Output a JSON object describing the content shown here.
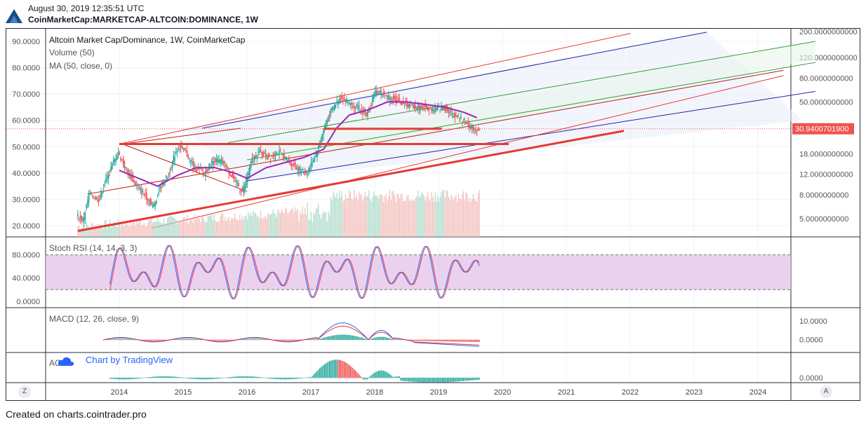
{
  "header": {
    "date": "August 30, 2019 12:35:51 UTC",
    "symbol": "CoinMarketCap:MARKETCAP-ALTCOIN:DOMINANCE, 1W"
  },
  "footer": "Created on charts.cointrader.pro",
  "colors": {
    "bull": "#26a69a",
    "bear": "#ef5350",
    "ma": "#9c27b0",
    "pitch_red": "#e53935",
    "pitch_blue": "#2222aa",
    "pitch_green": "#2e9e2e",
    "rsi_band": "#e1bee7",
    "macd_line": "#2962ff",
    "signal_line": "#e53935",
    "price_badge": "#ef5350"
  },
  "tv_badge": "Chart by TradingView",
  "buttons": {
    "left": "Z",
    "right": "A"
  },
  "chart_data": [
    {
      "type": "candlestick",
      "title": "Altcoin Market Cap/Dominance, 1W, CoinMarketCap",
      "indicators": [
        "Volume (50)",
        "MA (50, close, 0)"
      ],
      "ylim": [
        15,
        93
      ],
      "yticks": [
        "90.0000",
        "80.0000",
        "70.0000",
        "60.0000",
        "50.0000",
        "40.0000",
        "30.0000",
        "20.0000"
      ],
      "ytick_values": [
        90,
        80,
        70,
        60,
        50,
        40,
        30,
        20
      ],
      "right_axis": {
        "scale": "log",
        "ticks": [
          "200.0000000000",
          "120.0000000000",
          "80.0000000000",
          "50.0000000000",
          "18.0000000000",
          "12.0000000000",
          "8.0000000000",
          "5.0000000000"
        ],
        "tick_values": [
          200,
          120,
          80,
          50,
          18,
          12,
          8,
          5
        ],
        "current_price_label": "30.9400701900",
        "current_value": 56.8
      },
      "xticks": [
        "2014",
        "2015",
        "2016",
        "2017",
        "2018",
        "2019",
        "2020",
        "2021",
        "2022",
        "2023",
        "2024"
      ],
      "xtick_years": [
        2014,
        2015,
        2016,
        2017,
        2018,
        2019,
        2020,
        2021,
        2022,
        2023,
        2024
      ],
      "price_keypoints": [
        [
          2013.35,
          24
        ],
        [
          2013.45,
          22
        ],
        [
          2013.55,
          32
        ],
        [
          2013.7,
          30
        ],
        [
          2013.85,
          40
        ],
        [
          2014.0,
          48
        ],
        [
          2014.15,
          40
        ],
        [
          2014.3,
          35
        ],
        [
          2014.45,
          31
        ],
        [
          2014.55,
          27
        ],
        [
          2014.65,
          34
        ],
        [
          2014.8,
          40
        ],
        [
          2014.9,
          48
        ],
        [
          2014.95,
          50
        ],
        [
          2015.05,
          48
        ],
        [
          2015.2,
          42
        ],
        [
          2015.35,
          40
        ],
        [
          2015.5,
          45
        ],
        [
          2015.65,
          44
        ],
        [
          2015.8,
          38
        ],
        [
          2015.95,
          33
        ],
        [
          2016.1,
          45
        ],
        [
          2016.2,
          48
        ],
        [
          2016.35,
          46
        ],
        [
          2016.5,
          48
        ],
        [
          2016.65,
          45
        ],
        [
          2016.8,
          42
        ],
        [
          2016.95,
          40
        ],
        [
          2017.1,
          47
        ],
        [
          2017.2,
          55
        ],
        [
          2017.3,
          62
        ],
        [
          2017.4,
          66
        ],
        [
          2017.5,
          69
        ],
        [
          2017.6,
          67
        ],
        [
          2017.75,
          65
        ],
        [
          2017.9,
          62
        ],
        [
          2018.0,
          70
        ],
        [
          2018.1,
          71
        ],
        [
          2018.2,
          69
        ],
        [
          2018.35,
          68
        ],
        [
          2018.5,
          66
        ],
        [
          2018.65,
          65
        ],
        [
          2018.8,
          65
        ],
        [
          2018.95,
          64
        ],
        [
          2019.1,
          65
        ],
        [
          2019.25,
          62
        ],
        [
          2019.4,
          60
        ],
        [
          2019.55,
          57
        ],
        [
          2019.65,
          56.5
        ]
      ],
      "ma_keypoints": [
        [
          2014.0,
          41
        ],
        [
          2014.3,
          38
        ],
        [
          2014.6,
          35
        ],
        [
          2014.9,
          39
        ],
        [
          2015.2,
          42
        ],
        [
          2015.5,
          42
        ],
        [
          2015.8,
          40
        ],
        [
          2016.0,
          38
        ],
        [
          2016.3,
          42
        ],
        [
          2016.6,
          44
        ],
        [
          2016.9,
          46
        ],
        [
          2017.2,
          49
        ],
        [
          2017.4,
          57
        ],
        [
          2017.6,
          62
        ],
        [
          2017.9,
          64
        ],
        [
          2018.2,
          67
        ],
        [
          2018.5,
          67
        ],
        [
          2018.8,
          66
        ],
        [
          2019.1,
          65
        ],
        [
          2019.4,
          63
        ],
        [
          2019.6,
          61
        ]
      ],
      "horizontal_levels": [
        {
          "y": 56.8,
          "x0": 2017.2,
          "x1": 2019.05,
          "color": "red",
          "width": 3
        },
        {
          "y": 51,
          "x0": 2014.0,
          "x1": 2020.1,
          "color": "red",
          "width": 3
        }
      ],
      "trendline": {
        "from": [
          2013.35,
          18
        ],
        "to": [
          2021.9,
          56
        ],
        "color": "red",
        "width": 3
      }
    },
    {
      "type": "line",
      "title": "Stoch RSI (14, 14, 3, 3)",
      "yticks": [
        "80.0000",
        "40.0000",
        "0.0000"
      ],
      "ytick_values": [
        80,
        40,
        0
      ],
      "band": [
        20,
        80
      ],
      "ylim": [
        -5,
        100
      ]
    },
    {
      "type": "line",
      "title": "MACD (12, 26, close, 9)",
      "yticks": [
        "10.0000",
        "0.0000"
      ],
      "ytick_values": [
        10,
        0
      ],
      "ylim": [
        -5,
        13
      ]
    },
    {
      "type": "bar",
      "title": "AO",
      "yticks": [
        "0.0000"
      ],
      "ytick_values": [
        0
      ],
      "ylim": [
        -2,
        12
      ]
    }
  ]
}
